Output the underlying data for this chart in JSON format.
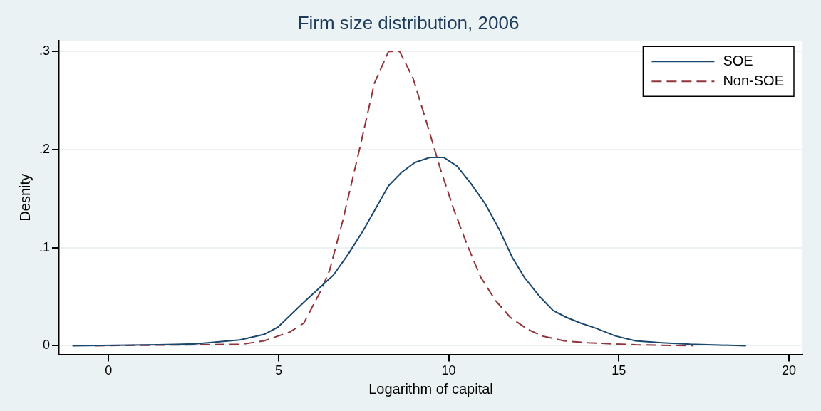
{
  "chart_data": {
    "type": "line",
    "title": "Firm size distribution, 2006",
    "xlabel": "Logarithm of capital",
    "ylabel": "Desnity",
    "xlim": [
      -1.45,
      20.4
    ],
    "ylim": [
      -0.0087,
      0.311
    ],
    "xticks": [
      0,
      5,
      10,
      15,
      20
    ],
    "yticks": [
      {
        "value": 0,
        "label": "0"
      },
      {
        "value": 0.1,
        "label": ".1"
      },
      {
        "value": 0.2,
        "label": ".2"
      },
      {
        "value": 0.3,
        "label": ".3"
      }
    ],
    "grid": "y",
    "legend": "top right",
    "marker": "none",
    "series": [
      {
        "name": "SOE",
        "color": "#1a476f",
        "line_style": "solid",
        "x": [
          -1.06,
          1.47,
          2.56,
          3.2,
          3.86,
          4.57,
          4.98,
          5.76,
          6.61,
          7.04,
          7.48,
          8.23,
          8.62,
          9.01,
          9.45,
          9.86,
          10.25,
          10.64,
          11.07,
          11.48,
          11.87,
          12.24,
          12.68,
          13.07,
          13.46,
          13.89,
          14.32,
          14.9,
          15.49,
          16.27,
          17.1,
          18.74
        ],
        "values": [
          0,
          0.001,
          0.002,
          0.004,
          0.006,
          0.0115,
          0.019,
          0.045,
          0.072,
          0.093,
          0.117,
          0.163,
          0.177,
          0.187,
          0.192,
          0.192,
          0.183,
          0.166,
          0.145,
          0.119,
          0.09,
          0.069,
          0.05,
          0.036,
          0.029,
          0.023,
          0.018,
          0.01,
          0.005,
          0.003,
          0.0015,
          0
        ]
      },
      {
        "name": "Non-SOE",
        "color": "#90353b",
        "line_style": "dashed",
        "x": [
          -0.4,
          3.92,
          4.57,
          5.33,
          5.74,
          6.24,
          6.5,
          6.89,
          7.39,
          7.82,
          8.23,
          8.56,
          8.95,
          9.34,
          9.75,
          10.14,
          10.53,
          10.94,
          11.38,
          11.81,
          12.31,
          12.74,
          13.39,
          14.1,
          15.5,
          17.2
        ],
        "values": [
          0,
          0.0015,
          0.005,
          0.014,
          0.023,
          0.056,
          0.077,
          0.128,
          0.202,
          0.268,
          0.3,
          0.3,
          0.273,
          0.229,
          0.181,
          0.14,
          0.104,
          0.07,
          0.046,
          0.029,
          0.017,
          0.01,
          0.005,
          0.003,
          0.001,
          0
        ]
      }
    ]
  }
}
